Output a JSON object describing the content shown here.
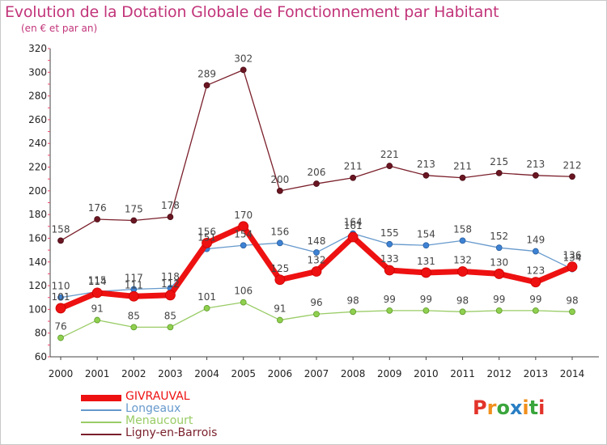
{
  "header": {
    "title": "Evolution de la Dotation Globale de Fonctionnement par Habitant",
    "subtitle": "(en € et par an)"
  },
  "logo": {
    "text": "Proxiti",
    "colors": [
      "#e2332a",
      "#f18f1d",
      "#3aa53c",
      "#2a7fc4",
      "#f18f1d",
      "#3aa53c",
      "#e2332a"
    ]
  },
  "chart_data": {
    "type": "line",
    "title": "Evolution de la Dotation Globale de Fonctionnement par Habitant",
    "subtitle": "(en € et par an)",
    "xlabel": "",
    "ylabel": "",
    "ylim": [
      60,
      320
    ],
    "yticks": [
      60,
      80,
      100,
      120,
      140,
      160,
      180,
      200,
      220,
      240,
      260,
      280,
      300,
      320
    ],
    "categories": [
      "2000",
      "2001",
      "2002",
      "2003",
      "2004",
      "2005",
      "2006",
      "2007",
      "2008",
      "2009",
      "2010",
      "2011",
      "2012",
      "2013",
      "2014"
    ],
    "grid": false,
    "legend_position": "bottom-left",
    "series": [
      {
        "name": "GIVRAUVAL",
        "color": "#ee1111",
        "values": [
          101,
          114,
          111,
          112,
          156,
          170,
          125,
          132,
          161,
          133,
          131,
          132,
          130,
          123,
          136
        ]
      },
      {
        "name": "Longeaux",
        "color": "#6699cc",
        "values": [
          110,
          115,
          117,
          118,
          151,
          154,
          156,
          148,
          164,
          155,
          154,
          158,
          152,
          149,
          134
        ]
      },
      {
        "name": "Menaucourt",
        "color": "#99cc66",
        "values": [
          76,
          91,
          85,
          85,
          101,
          106,
          91,
          96,
          98,
          99,
          99,
          98,
          99,
          99,
          98
        ]
      },
      {
        "name": "Ligny-en-Barrois",
        "color": "#7a1f2b",
        "values": [
          158,
          176,
          175,
          178,
          289,
          302,
          200,
          206,
          211,
          221,
          213,
          211,
          215,
          213,
          212
        ]
      }
    ]
  }
}
